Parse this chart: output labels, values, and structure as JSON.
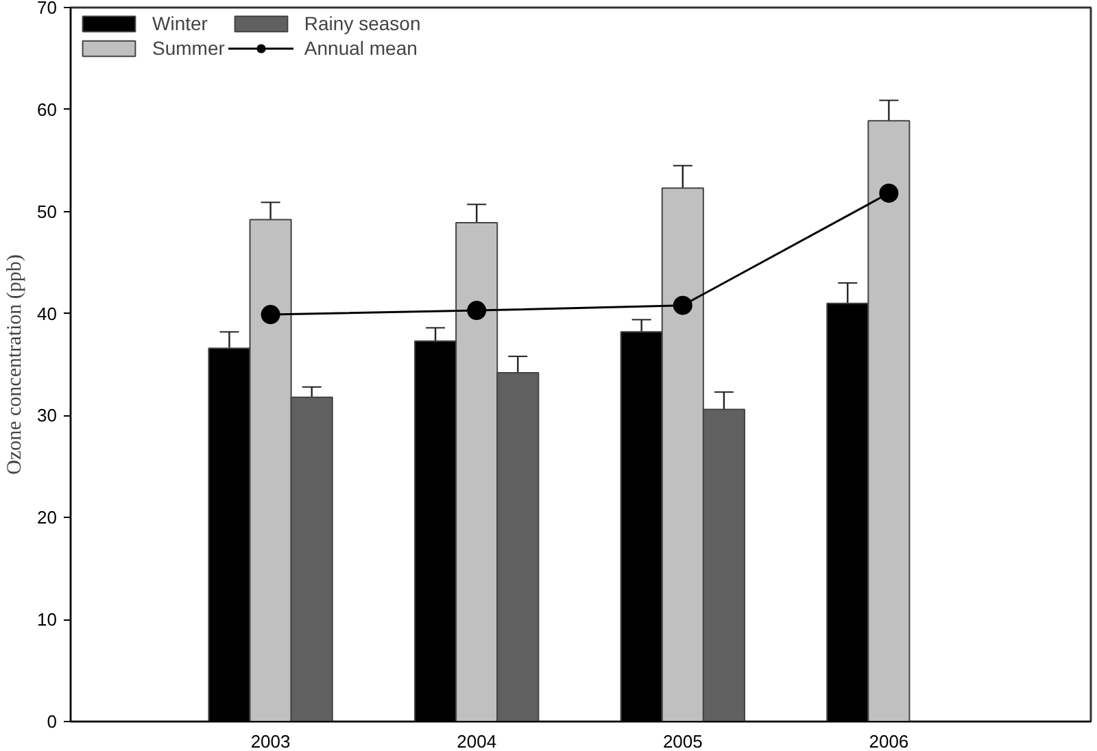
{
  "chart_data": {
    "type": "bar",
    "ylabel": "Ozone concentration (ppb)",
    "categories": [
      "2003",
      "2004",
      "2005",
      "2006"
    ],
    "series": [
      {
        "name": "Winter",
        "color": "#000000",
        "values": [
          36.6,
          37.3,
          38.2,
          41.0
        ],
        "errors": [
          1.6,
          1.3,
          1.2,
          2.0
        ]
      },
      {
        "name": "Summer",
        "color": "#c0c0c0",
        "values": [
          49.2,
          48.9,
          52.3,
          58.9
        ],
        "errors": [
          1.7,
          1.8,
          2.2,
          2.0
        ]
      },
      {
        "name": "Rainy season",
        "color": "#606060",
        "values": [
          31.8,
          34.2,
          30.6,
          null
        ],
        "errors": [
          1.0,
          1.6,
          1.7,
          null
        ]
      },
      {
        "name": "Annual mean",
        "type": "line",
        "color": "#000000",
        "values": [
          39.9,
          40.3,
          40.8,
          51.8
        ],
        "marker": "circle",
        "line_style": "solid"
      }
    ],
    "ylim": [
      0,
      70
    ],
    "yticks": [
      0,
      10,
      20,
      30,
      40,
      50,
      60,
      70
    ],
    "grid": false,
    "legend": "top left"
  }
}
